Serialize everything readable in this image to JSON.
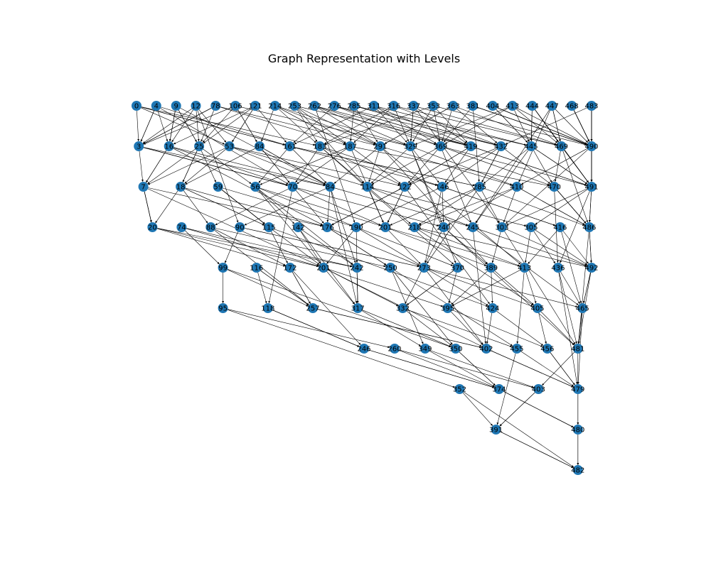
{
  "title": "Graph Representation with Levels",
  "colors": {
    "node_fill": "#1f77b4",
    "edge": "#000000",
    "label": "#000000",
    "background": "#ffffff"
  },
  "graph": {
    "directed": true,
    "levels": [
      {
        "level": 0,
        "nodes": [
          "0",
          "4",
          "9",
          "12",
          "78",
          "106",
          "121",
          "214",
          "253",
          "262",
          "276",
          "285",
          "311",
          "316",
          "337",
          "353",
          "363",
          "381",
          "404",
          "413",
          "444",
          "447",
          "468",
          "483"
        ]
      },
      {
        "level": 1,
        "nodes": [
          "3",
          "16",
          "25",
          "53",
          "84",
          "161",
          "183",
          "187",
          "291",
          "329",
          "369",
          "419",
          "432",
          "445",
          "469",
          "490"
        ]
      },
      {
        "level": 2,
        "nodes": [
          "7",
          "18",
          "59",
          "56",
          "70",
          "84",
          "114",
          "122",
          "146",
          "285",
          "410",
          "470",
          "491"
        ]
      },
      {
        "level": 3,
        "nodes": [
          "20",
          "74",
          "88",
          "90",
          "115",
          "142",
          "176",
          "190",
          "201",
          "218",
          "240",
          "245",
          "303",
          "305",
          "416",
          "486"
        ]
      },
      {
        "level": 4,
        "nodes": [
          "99",
          "116",
          "172",
          "201",
          "242",
          "250",
          "273",
          "370",
          "389",
          "413",
          "436",
          "492"
        ]
      },
      {
        "level": 5,
        "nodes": [
          "95",
          "118",
          "257",
          "317",
          "332",
          "395",
          "424",
          "405",
          "465"
        ]
      },
      {
        "level": 6,
        "nodes": [
          "246",
          "260",
          "349",
          "350",
          "402",
          "455",
          "456",
          "481"
        ]
      },
      {
        "level": 7,
        "nodes": [
          "352",
          "374",
          "403",
          "479"
        ]
      },
      {
        "level": 8,
        "nodes": [
          "391",
          "480"
        ]
      },
      {
        "level": 9,
        "nodes": [
          "482"
        ]
      }
    ]
  }
}
